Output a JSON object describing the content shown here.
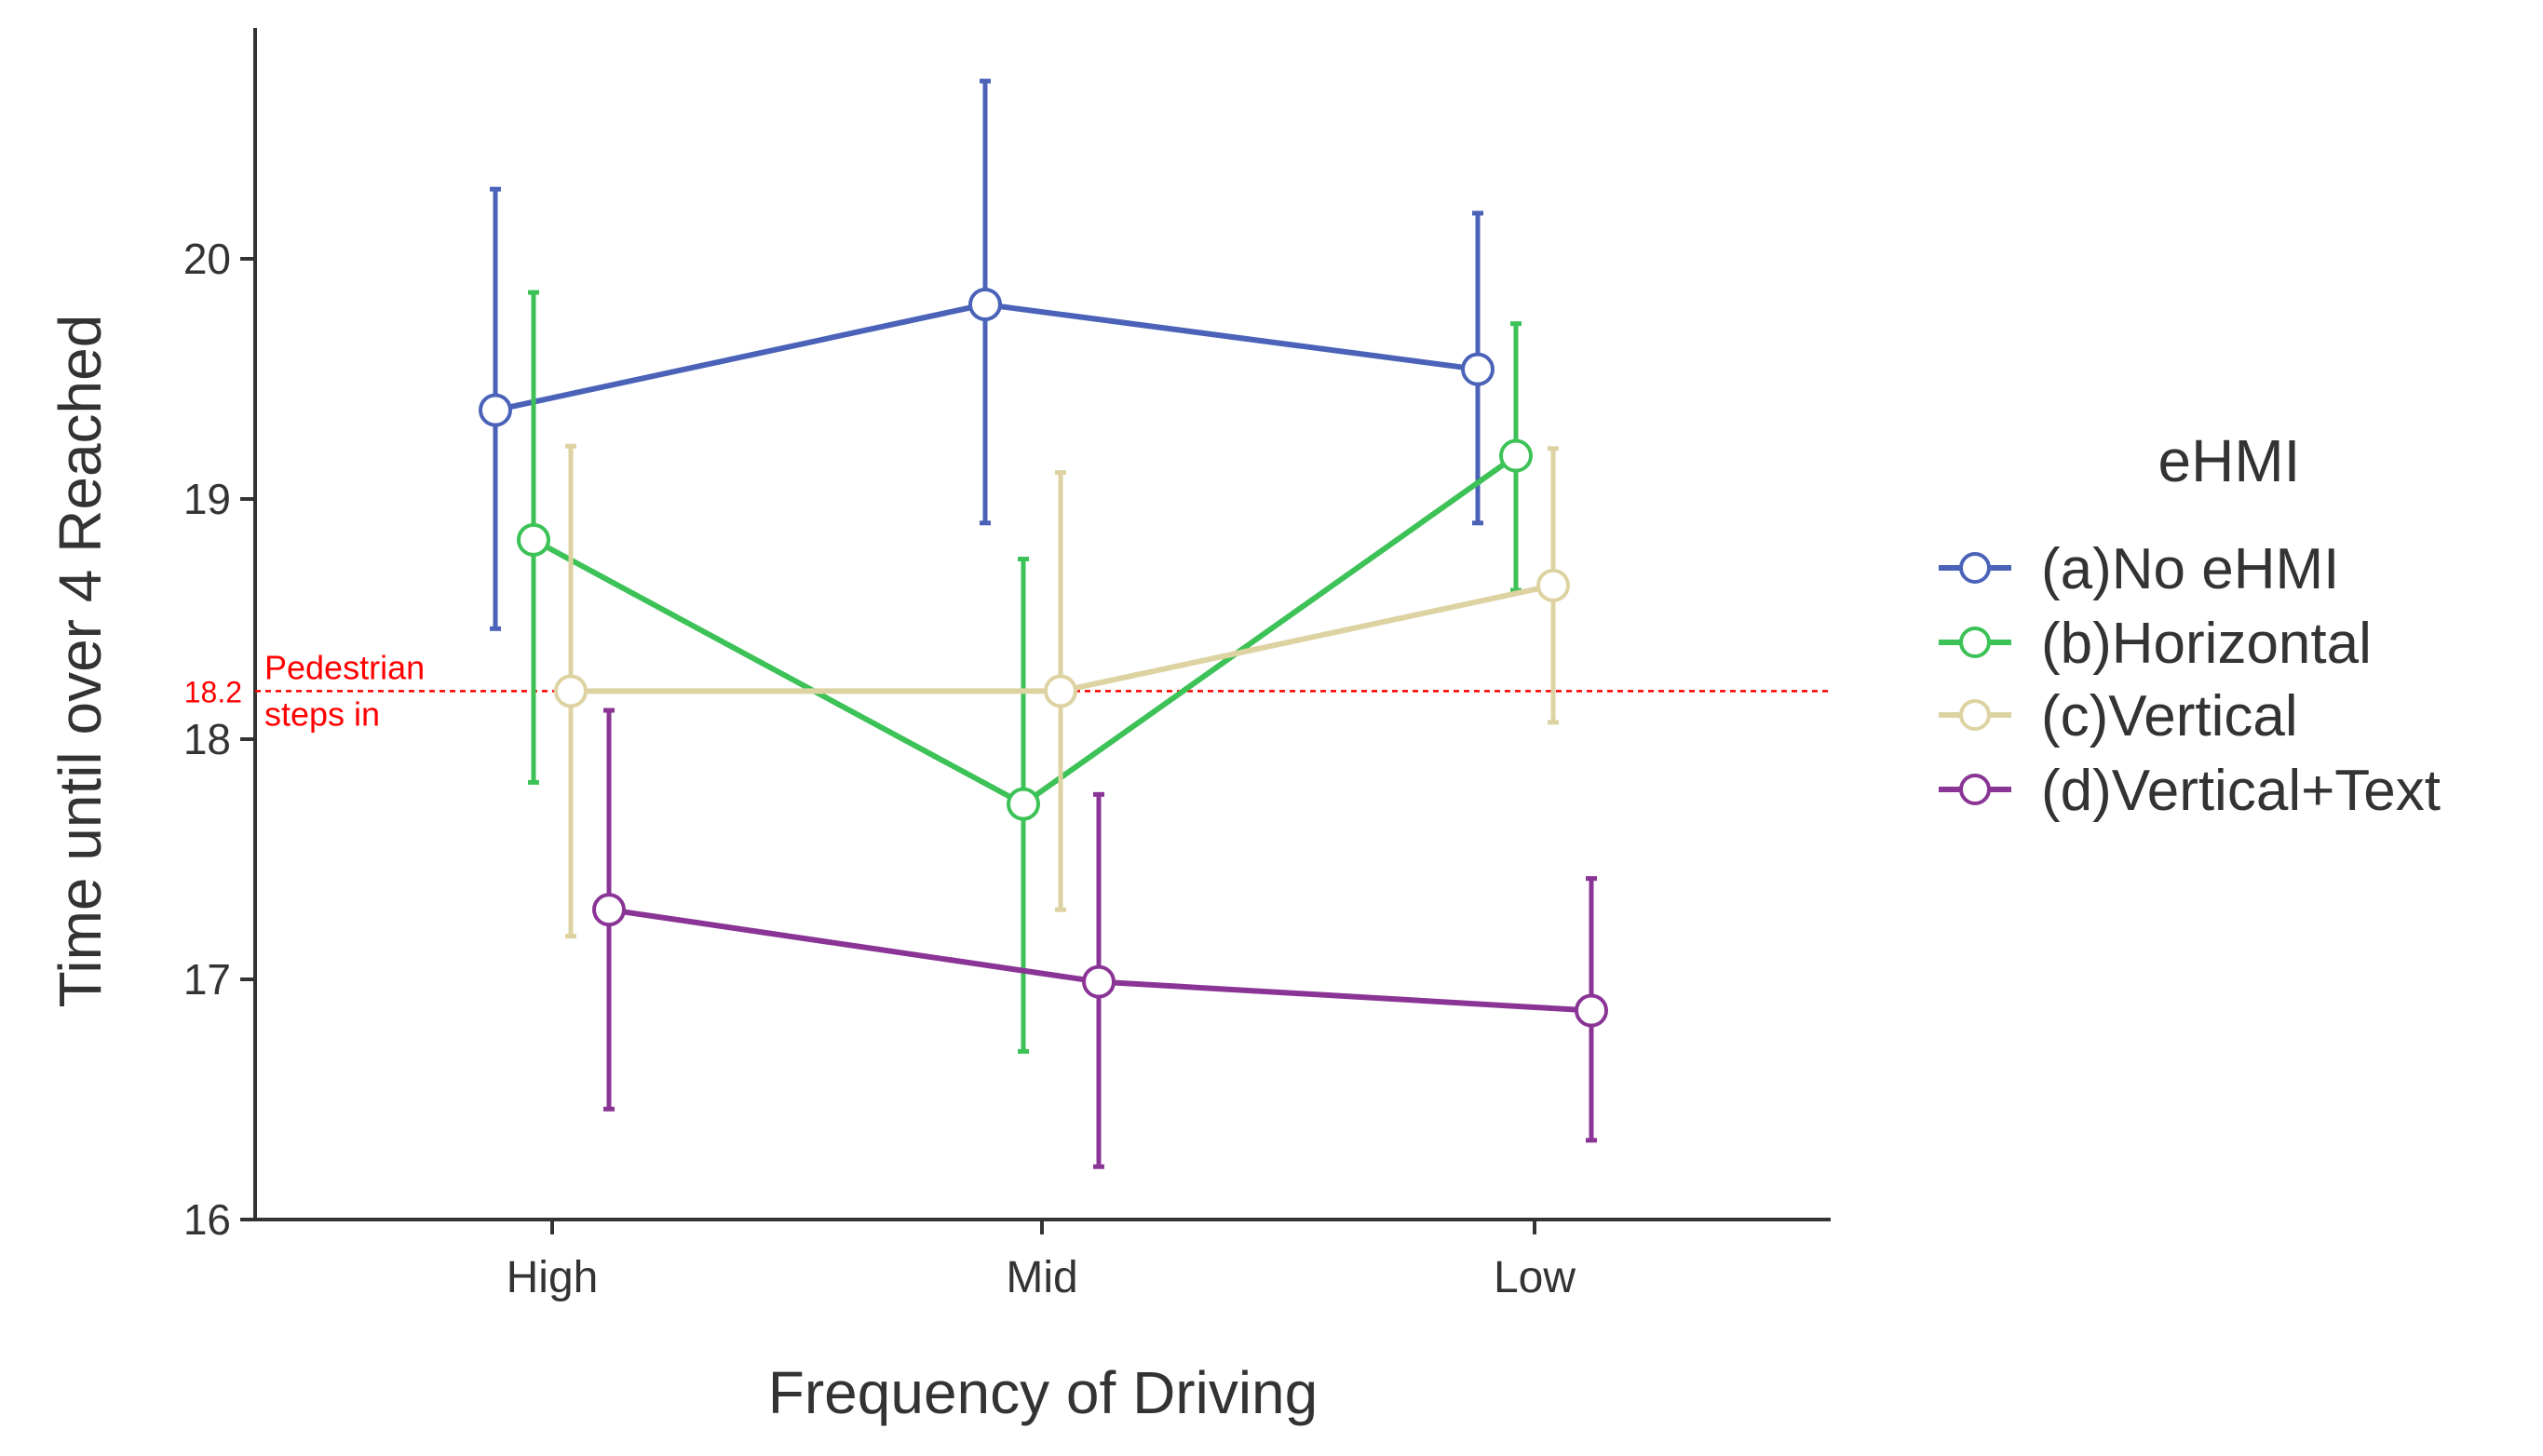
{
  "chart_data": {
    "type": "line",
    "title": "",
    "xlabel": "Frequency of Driving",
    "ylabel": "Time until over 4 Reached",
    "categories": [
      "High",
      "Mid",
      "Low"
    ],
    "ylim": [
      16,
      20.95
    ],
    "yticks": [
      16,
      17,
      18,
      19,
      20
    ],
    "legend": {
      "title": "eHMI",
      "position": "right"
    },
    "series": [
      {
        "name": "(a)No eHMI",
        "color": "#4a63b8",
        "values": [
          19.37,
          19.81,
          19.54
        ],
        "lower": [
          18.46,
          18.9,
          18.9
        ],
        "upper": [
          20.29,
          20.74,
          20.19
        ]
      },
      {
        "name": "(b)Horizontal",
        "color": "#3cc256",
        "values": [
          18.83,
          17.73,
          19.18
        ],
        "lower": [
          17.82,
          16.7,
          18.62
        ],
        "upper": [
          19.86,
          18.75,
          19.73
        ]
      },
      {
        "name": "(c)Vertical",
        "color": "#ddd3a2",
        "values": [
          18.2,
          18.2,
          18.64
        ],
        "lower": [
          17.18,
          17.29,
          18.07
        ],
        "upper": [
          19.22,
          19.11,
          19.21
        ]
      },
      {
        "name": "(d)Vertical+Text",
        "color": "#8a3596",
        "values": [
          17.29,
          16.99,
          16.87
        ],
        "lower": [
          16.46,
          16.22,
          16.33
        ],
        "upper": [
          18.12,
          17.77,
          17.42
        ]
      }
    ],
    "reference_line": {
      "value": 18.2,
      "label": "18.2",
      "annotation": [
        "Pedestrian",
        "steps in"
      ],
      "color": "#ff0000"
    }
  }
}
